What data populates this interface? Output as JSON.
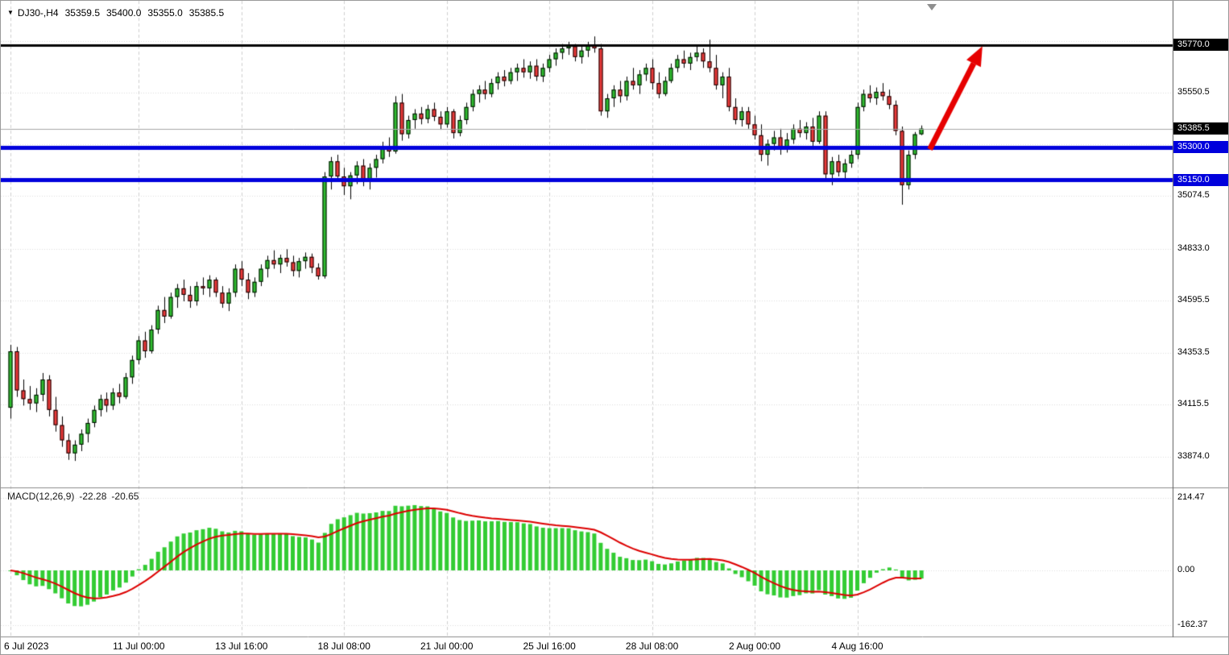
{
  "window": {
    "title": "DJ30-,H4"
  },
  "header": {
    "symbol": "DJ30-,H4",
    "open": "35359.5",
    "high": "35400.0",
    "low": "35355.0",
    "close": "35385.5"
  },
  "macd_label": {
    "name": "MACD(12,26,9)",
    "value": "-22.28",
    "signal": "-20.65"
  },
  "colors": {
    "background": "#ffffff",
    "bull": "#2fbf2f",
    "bear": "#ee3a3a",
    "candle_border": "#000000",
    "macd_hist": "#33cc33",
    "macd_signal": "#dd0000",
    "support_line": "#0000dc",
    "resistance_line": "#000000",
    "current_price_line": "#a8a8a8",
    "arrow": "#e60000",
    "grid": "#dcdcdc",
    "vgrid": "#cfcfcf",
    "axis_text": "#000000",
    "badge_text": "#ffffff",
    "separator": "#8c8c8c"
  },
  "chart_data": {
    "type": "candlestick",
    "symbol": "DJ30-",
    "timeframe": "H4",
    "price_pane": {
      "range": [
        33733,
        35974
      ],
      "axis_ticks": [
        35550.5,
        35074.5,
        34833.0,
        34595.5,
        34353.5,
        34115.5,
        33874.0
      ],
      "grid_ticks": [
        35788.5,
        35550.5,
        35312.5,
        35074.5,
        34833.0,
        34595.5,
        34353.5,
        34115.5,
        33874.0
      ],
      "levels": [
        {
          "value": 35770.0,
          "label": "35770.0",
          "line_color": "#000000",
          "line_width": 3,
          "badge_bg": "#000000"
        },
        {
          "value": 35385.5,
          "label": "35385.5",
          "line_color": "#a8a8a8",
          "line_width": 1,
          "badge_bg": "#000000"
        },
        {
          "value": 35300.0,
          "label": "35300.0",
          "line_color": "#0000dc",
          "line_width": 5,
          "badge_bg": "#0000dc"
        },
        {
          "value": 35150.0,
          "label": "35150.0",
          "line_color": "#0000dc",
          "line_width": 5,
          "badge_bg": "#0000dc"
        }
      ]
    },
    "macd_pane": {
      "range": [
        -193,
        243
      ],
      "axis_ticks": [
        214.47,
        0.0,
        -162.37
      ],
      "params": {
        "fast": 12,
        "slow": 26,
        "signal": 9
      }
    },
    "x_labels": [
      {
        "text": "6 Jul 2023",
        "bar": 0
      },
      {
        "text": "11 Jul 00:00",
        "bar": 20
      },
      {
        "text": "13 Jul 16:00",
        "bar": 36
      },
      {
        "text": "18 Jul 08:00",
        "bar": 52
      },
      {
        "text": "21 Jul 00:00",
        "bar": 68
      },
      {
        "text": "25 Jul 16:00",
        "bar": 84
      },
      {
        "text": "28 Jul 08:00",
        "bar": 100
      },
      {
        "text": "2 Aug 00:00",
        "bar": 116
      },
      {
        "text": "4 Aug 16:00",
        "bar": 132
      }
    ],
    "candles": [
      [
        34100,
        34390,
        34050,
        34360
      ],
      [
        34360,
        34380,
        34150,
        34180
      ],
      [
        34180,
        34230,
        34110,
        34140
      ],
      [
        34140,
        34200,
        34090,
        34120
      ],
      [
        34120,
        34190,
        34080,
        34160
      ],
      [
        34160,
        34260,
        34130,
        34230
      ],
      [
        34230,
        34250,
        34060,
        34090
      ],
      [
        34090,
        34150,
        33990,
        34020
      ],
      [
        34020,
        34060,
        33920,
        33950
      ],
      [
        33950,
        33980,
        33860,
        33890
      ],
      [
        33890,
        33950,
        33855,
        33930
      ],
      [
        33930,
        34000,
        33900,
        33980
      ],
      [
        33980,
        34050,
        33940,
        34030
      ],
      [
        34030,
        34110,
        34010,
        34090
      ],
      [
        34090,
        34160,
        34060,
        34140
      ],
      [
        34140,
        34170,
        34080,
        34110
      ],
      [
        34110,
        34190,
        34090,
        34170
      ],
      [
        34170,
        34210,
        34120,
        34150
      ],
      [
        34150,
        34260,
        34140,
        34240
      ],
      [
        34240,
        34340,
        34210,
        34320
      ],
      [
        34320,
        34430,
        34300,
        34410
      ],
      [
        34410,
        34450,
        34330,
        34360
      ],
      [
        34360,
        34480,
        34350,
        34460
      ],
      [
        34460,
        34570,
        34440,
        34550
      ],
      [
        34550,
        34610,
        34490,
        34520
      ],
      [
        34520,
        34630,
        34510,
        34610
      ],
      [
        34610,
        34670,
        34560,
        34650
      ],
      [
        34650,
        34690,
        34590,
        34620
      ],
      [
        34620,
        34660,
        34560,
        34590
      ],
      [
        34590,
        34680,
        34570,
        34660
      ],
      [
        34660,
        34700,
        34620,
        34650
      ],
      [
        34650,
        34710,
        34610,
        34690
      ],
      [
        34690,
        34700,
        34610,
        34630
      ],
      [
        34630,
        34660,
        34560,
        34580
      ],
      [
        34580,
        34650,
        34545,
        34630
      ],
      [
        34630,
        34760,
        34610,
        34740
      ],
      [
        34740,
        34775,
        34660,
        34690
      ],
      [
        34690,
        34720,
        34600,
        34630
      ],
      [
        34630,
        34700,
        34610,
        34680
      ],
      [
        34680,
        34760,
        34660,
        34740
      ],
      [
        34740,
        34800,
        34700,
        34780
      ],
      [
        34780,
        34825,
        34740,
        34760
      ],
      [
        34760,
        34805,
        34720,
        34790
      ],
      [
        34790,
        34830,
        34750,
        34770
      ],
      [
        34770,
        34800,
        34705,
        34730
      ],
      [
        34730,
        34790,
        34700,
        34775
      ],
      [
        34775,
        34815,
        34740,
        34795
      ],
      [
        34795,
        34810,
        34720,
        34745
      ],
      [
        34745,
        34765,
        34690,
        34705
      ],
      [
        34705,
        35185,
        34695,
        35165
      ],
      [
        35165,
        35255,
        35105,
        35235
      ],
      [
        35235,
        35265,
        35140,
        35165
      ],
      [
        35165,
        35205,
        35080,
        35120
      ],
      [
        35120,
        35185,
        35060,
        35170
      ],
      [
        35170,
        35235,
        35130,
        35215
      ],
      [
        35215,
        35245,
        35120,
        35145
      ],
      [
        35145,
        35225,
        35105,
        35205
      ],
      [
        35205,
        35265,
        35160,
        35245
      ],
      [
        35245,
        35325,
        35225,
        35305
      ],
      [
        35305,
        35345,
        35255,
        35280
      ],
      [
        35280,
        35535,
        35270,
        35505
      ],
      [
        35505,
        35545,
        35330,
        35360
      ],
      [
        35360,
        35445,
        35340,
        35425
      ],
      [
        35425,
        35475,
        35385,
        35455
      ],
      [
        35455,
        35485,
        35405,
        35430
      ],
      [
        35430,
        35495,
        35410,
        35475
      ],
      [
        35475,
        35505,
        35420,
        35440
      ],
      [
        35440,
        35465,
        35380,
        35405
      ],
      [
        35405,
        35485,
        35390,
        35465
      ],
      [
        35465,
        35475,
        35340,
        35365
      ],
      [
        35365,
        35445,
        35350,
        35425
      ],
      [
        35425,
        35505,
        35405,
        35485
      ],
      [
        35485,
        35565,
        35465,
        35545
      ],
      [
        35545,
        35585,
        35505,
        35565
      ],
      [
        35565,
        35605,
        35520,
        35545
      ],
      [
        35545,
        35615,
        35530,
        35595
      ],
      [
        35595,
        35645,
        35565,
        35625
      ],
      [
        35625,
        35655,
        35580,
        35605
      ],
      [
        35605,
        35665,
        35590,
        35645
      ],
      [
        35645,
        35685,
        35605,
        35665
      ],
      [
        35665,
        35705,
        35620,
        35645
      ],
      [
        35645,
        35695,
        35615,
        35675
      ],
      [
        35675,
        35705,
        35605,
        35625
      ],
      [
        35625,
        35685,
        35600,
        35665
      ],
      [
        35665,
        35725,
        35645,
        35705
      ],
      [
        35705,
        35755,
        35675,
        35735
      ],
      [
        35735,
        35775,
        35705,
        35755
      ],
      [
        35755,
        35785,
        35725,
        35765
      ],
      [
        35765,
        35775,
        35695,
        35715
      ],
      [
        35715,
        35765,
        35685,
        35745
      ],
      [
        35745,
        35785,
        35715,
        35770
      ],
      [
        35770,
        35810,
        35735,
        35755
      ],
      [
        35755,
        35775,
        35445,
        35465
      ],
      [
        35465,
        35545,
        35435,
        35525
      ],
      [
        35525,
        35585,
        35485,
        35565
      ],
      [
        35565,
        35605,
        35505,
        35535
      ],
      [
        35535,
        35625,
        35515,
        35605
      ],
      [
        35605,
        35665,
        35565,
        35585
      ],
      [
        35585,
        35655,
        35545,
        35635
      ],
      [
        35635,
        35685,
        35605,
        35665
      ],
      [
        35665,
        35705,
        35565,
        35595
      ],
      [
        35595,
        35645,
        35525,
        35545
      ],
      [
        35545,
        35625,
        35535,
        35605
      ],
      [
        35605,
        35685,
        35595,
        35665
      ],
      [
        35665,
        35725,
        35645,
        35705
      ],
      [
        35705,
        35745,
        35665,
        35685
      ],
      [
        35685,
        35735,
        35655,
        35715
      ],
      [
        35715,
        35765,
        35695,
        35735
      ],
      [
        35735,
        35755,
        35665,
        35695
      ],
      [
        35695,
        35795,
        35645,
        35665
      ],
      [
        35665,
        35725,
        35565,
        35585
      ],
      [
        35585,
        35645,
        35525,
        35625
      ],
      [
        35625,
        35665,
        35465,
        35485
      ],
      [
        35485,
        35525,
        35405,
        35425
      ],
      [
        35425,
        35485,
        35395,
        35465
      ],
      [
        35465,
        35485,
        35385,
        35405
      ],
      [
        35405,
        35445,
        35335,
        35355
      ],
      [
        35355,
        35405,
        35235,
        35265
      ],
      [
        35265,
        35335,
        35215,
        35315
      ],
      [
        35315,
        35375,
        35285,
        35345
      ],
      [
        35345,
        35385,
        35265,
        35295
      ],
      [
        35295,
        35365,
        35275,
        35335
      ],
      [
        35335,
        35405,
        35315,
        35385
      ],
      [
        35385,
        35425,
        35345,
        35365
      ],
      [
        35365,
        35415,
        35335,
        35395
      ],
      [
        35395,
        35435,
        35305,
        35325
      ],
      [
        35325,
        35465,
        35315,
        35445
      ],
      [
        35445,
        35465,
        35155,
        35175
      ],
      [
        35175,
        35255,
        35125,
        35235
      ],
      [
        35235,
        35265,
        35165,
        35185
      ],
      [
        35185,
        35245,
        35145,
        35225
      ],
      [
        35225,
        35285,
        35205,
        35265
      ],
      [
        35265,
        35505,
        35245,
        35485
      ],
      [
        35485,
        35565,
        35465,
        35545
      ],
      [
        35545,
        35585,
        35505,
        35525
      ],
      [
        35525,
        35575,
        35495,
        35555
      ],
      [
        35555,
        35595,
        35515,
        35535
      ],
      [
        35535,
        35565,
        35475,
        35495
      ],
      [
        35495,
        35515,
        35355,
        35375
      ],
      [
        35375,
        35395,
        35035,
        35125
      ],
      [
        35125,
        35285,
        35105,
        35265
      ],
      [
        35265,
        35370,
        35245,
        35359.5
      ],
      [
        35359.5,
        35400,
        35355,
        35385.5
      ]
    ],
    "arrow": {
      "from": {
        "bar": 143.3,
        "price": 35290
      },
      "to": {
        "bar": 151.5,
        "price": 35765
      },
      "color": "#e60000",
      "width": 7
    }
  }
}
